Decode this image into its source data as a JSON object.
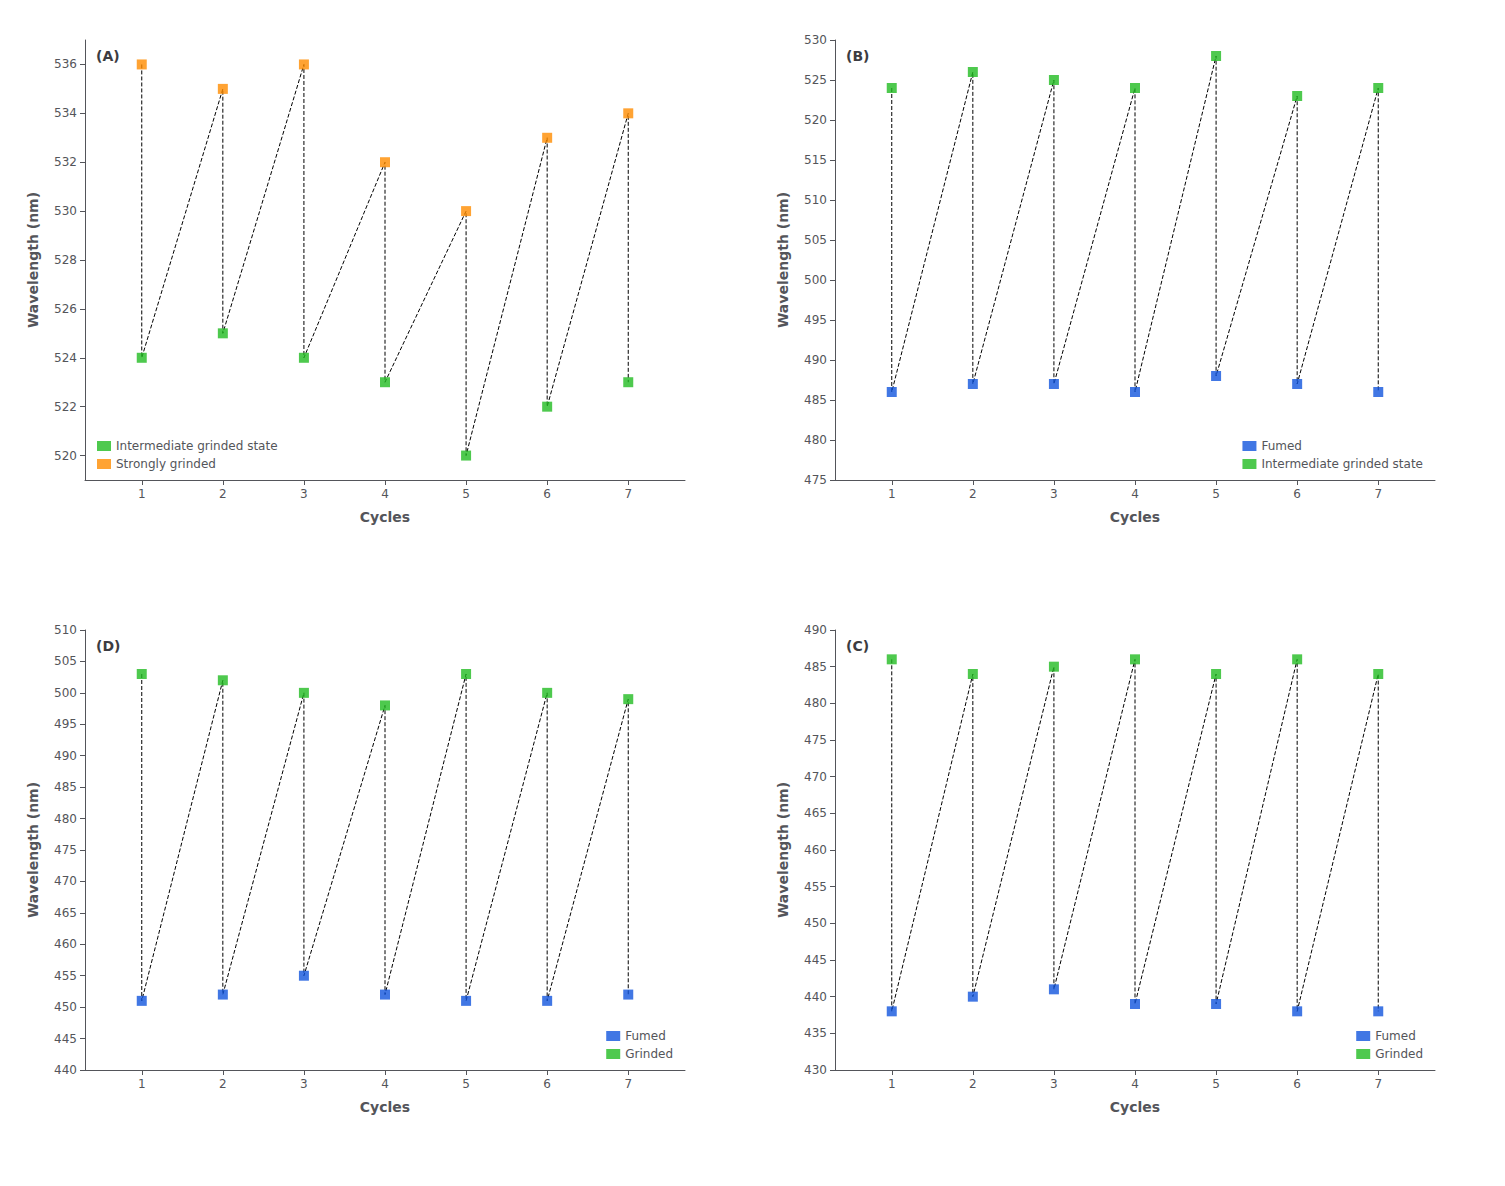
{
  "chart_data": [
    {
      "type": "scatter",
      "title": "(A)",
      "xlabel": "Cycles",
      "ylabel": "Wavelength (nm)",
      "series": [
        {
          "name": "Intermediate grinded state",
          "color": "#22bb22",
          "marker": "square",
          "x": [
            1,
            2,
            3,
            4,
            5,
            6,
            7
          ],
          "values": [
            524,
            525,
            524,
            523,
            520,
            522,
            523
          ]
        },
        {
          "name": "Strongly grinded",
          "color": "#FF8C00",
          "marker": "square",
          "x": [
            1,
            2,
            3,
            4,
            5,
            6,
            7
          ],
          "values": [
            536,
            535,
            536,
            532,
            530,
            533,
            534
          ]
        }
      ],
      "xlim": [
        0.3,
        7.7
      ],
      "xticks": [
        1,
        2,
        3,
        4,
        5,
        6,
        7
      ],
      "ylim": [
        519.0,
        537.0
      ],
      "yticks": [
        520,
        522,
        524,
        526,
        528,
        530,
        532,
        534,
        536
      ],
      "legend": "lower left",
      "grid": false,
      "line_style": "dashed",
      "color": "#000000"
    },
    {
      "type": "scatter",
      "title": "(B)",
      "xlabel": "Cycles",
      "ylabel": "Wavelength (nm)",
      "series": [
        {
          "name": "Fumed",
          "color": "#1155dd",
          "marker": "square",
          "x": [
            1,
            2,
            3,
            4,
            5,
            6,
            7
          ],
          "values": [
            486,
            487,
            487,
            486,
            488,
            487,
            486
          ]
        },
        {
          "name": "Intermediate grinded state",
          "color": "#22bb22",
          "marker": "square",
          "x": [
            1,
            2,
            3,
            4,
            5,
            6,
            7
          ],
          "values": [
            524,
            526,
            525,
            524,
            528,
            523,
            524
          ]
        }
      ],
      "xlim": [
        0.3,
        7.7
      ],
      "xticks": [
        1,
        2,
        3,
        4,
        5,
        6,
        7
      ],
      "ylim": [
        475.0,
        530.0
      ],
      "yticks": [
        475,
        480,
        485,
        490,
        495,
        500,
        505,
        510,
        515,
        520,
        525,
        530
      ],
      "legend": "lower right",
      "grid": false,
      "line_style": "dashed",
      "color": "#000000"
    },
    {
      "type": "scatter",
      "title": "(D)",
      "xlabel": "Cycles",
      "ylabel": "Wavelength (nm)",
      "series": [
        {
          "name": "Fumed",
          "color": "#1155dd",
          "marker": "square",
          "x": [
            1,
            2,
            3,
            4,
            5,
            6,
            7
          ],
          "values": [
            451,
            452,
            455,
            452,
            451,
            451,
            452
          ]
        },
        {
          "name": "Grinded",
          "color": "#22bb22",
          "marker": "square",
          "x": [
            1,
            2,
            3,
            4,
            5,
            6,
            7
          ],
          "values": [
            503,
            502,
            500,
            498,
            503,
            500,
            499
          ]
        }
      ],
      "xlim": [
        0.3,
        7.7
      ],
      "xticks": [
        1,
        2,
        3,
        4,
        5,
        6,
        7
      ],
      "ylim": [
        440.0,
        510.0
      ],
      "yticks": [
        440,
        445,
        450,
        455,
        460,
        465,
        470,
        475,
        480,
        485,
        490,
        495,
        500,
        505,
        510
      ],
      "legend": "lower right",
      "grid": false,
      "line_style": "dashed",
      "color": "#000000"
    },
    {
      "type": "scatter",
      "title": "(C)",
      "xlabel": "Cycles",
      "ylabel": "Wavelength (nm)",
      "series": [
        {
          "name": "Fumed",
          "color": "#1155dd",
          "marker": "square",
          "x": [
            1,
            2,
            3,
            4,
            5,
            6,
            7
          ],
          "values": [
            438,
            440,
            441,
            439,
            439,
            438,
            438
          ]
        },
        {
          "name": "Grinded",
          "color": "#22bb22",
          "marker": "square",
          "x": [
            1,
            2,
            3,
            4,
            5,
            6,
            7
          ],
          "values": [
            486,
            484,
            485,
            486,
            484,
            486,
            484
          ]
        }
      ],
      "xlim": [
        0.3,
        7.7
      ],
      "xticks": [
        1,
        2,
        3,
        4,
        5,
        6,
        7
      ],
      "ylim": [
        430.0,
        490.0
      ],
      "yticks": [
        430,
        435,
        440,
        445,
        450,
        455,
        460,
        465,
        470,
        475,
        480,
        485,
        490
      ],
      "legend": "lower right",
      "grid": false,
      "line_style": "dashed",
      "color": "#000000"
    }
  ]
}
